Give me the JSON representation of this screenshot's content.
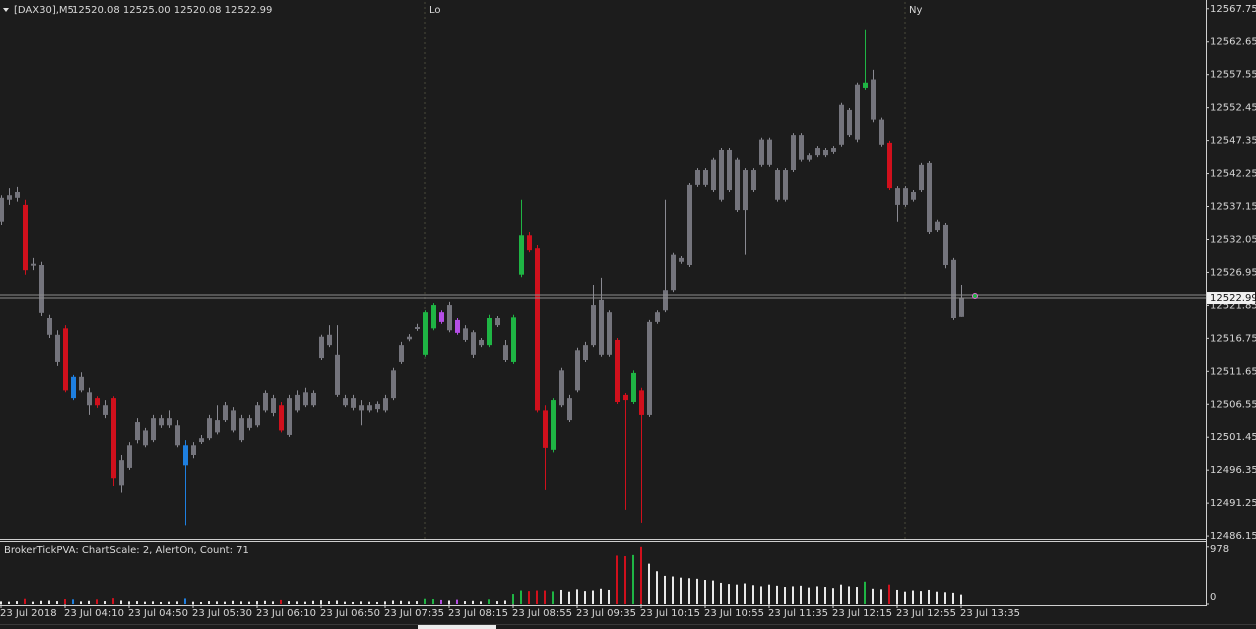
{
  "chart_data": {
    "type": "candlestick",
    "symbol": "[DAX30],M5",
    "info": "12520.08 12525.00 12520.08 12522.99",
    "indicator_label": "BrokerTickPVA:  ChartScale: 2, AlertOn, Count:  71",
    "categories": [
      "23 Jul 2018",
      null,
      null,
      null,
      null,
      null,
      null,
      null,
      "23 Jul 04:10",
      null,
      null,
      null,
      null,
      null,
      null,
      null,
      "23 Jul 04:50",
      null,
      null,
      null,
      null,
      null,
      null,
      null,
      "23 Jul 05:30",
      null,
      null,
      null,
      null,
      null,
      null,
      null,
      "23 Jul 06:10",
      null,
      null,
      null,
      null,
      null,
      null,
      null,
      "23 Jul 06:50",
      null,
      null,
      null,
      null,
      null,
      null,
      null,
      "23 Jul 07:35",
      null,
      null,
      null,
      null,
      null,
      null,
      null,
      "23 Jul 08:15",
      null,
      null,
      null,
      null,
      null,
      null,
      null,
      "23 Jul 08:55",
      null,
      null,
      null,
      null,
      null,
      null,
      null,
      "23 Jul 09:35",
      null,
      null,
      null,
      null,
      null,
      null,
      null,
      "23 Jul 10:15",
      null,
      null,
      null,
      null,
      null,
      null,
      null,
      "23 Jul 10:55",
      null,
      null,
      null,
      null,
      null,
      null,
      null,
      "23 Jul 11:35",
      null,
      null,
      null,
      null,
      null,
      null,
      null,
      "23 Jul 12:15",
      null,
      null,
      null,
      null,
      null,
      null,
      null,
      "23 Jul 12:55",
      null,
      null,
      null,
      null,
      null,
      null,
      null,
      "23 Jul 13:35"
    ],
    "open": [
      12534.8,
      12538.2,
      12538.5,
      12537.4,
      12528.0,
      12528.1,
      12519.9,
      12517.3,
      12518.3,
      12510.8,
      12508.7,
      12508.4,
      12507.5,
      12506.4,
      12507.5,
      12494.0,
      12496.7,
      12501.0,
      12500.2,
      12501.0,
      12503.3,
      12503.3,
      12503.3,
      12500.2,
      12498.7,
      12500.7,
      12501.3,
      12502.2,
      12504.1,
      12505.6,
      12504.4,
      12502.9,
      12503.3,
      12505.6,
      12507.5,
      12506.4,
      12501.8,
      12505.6,
      12506.4,
      12508.3,
      12513.7,
      12515.7,
      12514.2,
      12507.5,
      12507.5,
      12506.4,
      12505.6,
      12505.8,
      12505.6,
      12507.5,
      12513.1,
      12516.6,
      12518.2,
      12514.2,
      12518.3,
      12519.3,
      12518.0,
      12519.6,
      12518.3,
      12517.7,
      12516.5,
      12515.7,
      12519.9,
      12515.7,
      12513.1,
      12526.6,
      12532.7,
      12530.7,
      12505.6,
      12499.5,
      12506.4,
      12504.1,
      12508.7,
      12513.4,
      12515.7,
      12514.2,
      12520.8,
      12516.5,
      12508.0,
      12506.9,
      12508.7,
      12504.9,
      12519.3,
      12521.1,
      12524.2,
      12528.6,
      12528.1,
      12540.5,
      12542.8,
      12539.7,
      12538.2,
      12545.9,
      12544.4,
      12536.6,
      12542.8,
      12543.6,
      12547.5,
      12542.8,
      12538.2,
      12542.8,
      12548.2,
      12544.4,
      12545.1,
      12545.9,
      12545.6,
      12546.7,
      12548.2,
      12547.5,
      12555.5,
      12556.8,
      12550.6,
      12547.0,
      12540.0,
      12537.4,
      12538.2,
      12539.7,
      12543.9,
      12533.5,
      12534.3,
      12528.9,
      12520.08
    ],
    "high": [
      12538.9,
      12540.0,
      12540.2,
      12538.2,
      12529.2,
      12528.6,
      12520.4,
      12518.0,
      12518.8,
      12511.1,
      12511.5,
      12509.1,
      12507.8,
      12507.2,
      12507.8,
      12498.7,
      12500.7,
      12504.4,
      12502.9,
      12504.9,
      12504.9,
      12505.6,
      12504.1,
      12501.0,
      12500.7,
      12501.8,
      12504.9,
      12506.4,
      12506.9,
      12506.1,
      12504.9,
      12504.9,
      12506.9,
      12508.7,
      12508.0,
      12506.9,
      12508.0,
      12508.7,
      12509.1,
      12508.7,
      12517.3,
      12518.8,
      12518.8,
      12508.0,
      12508.0,
      12507.2,
      12506.9,
      12507.0,
      12508.0,
      12512.2,
      12516.2,
      12517.4,
      12519.0,
      12521.1,
      12522.2,
      12521.1,
      12522.4,
      12519.9,
      12518.8,
      12518.0,
      12516.8,
      12520.4,
      12520.2,
      12516.5,
      12520.4,
      12538.2,
      12533.2,
      12531.2,
      12506.4,
      12507.5,
      12512.2,
      12508.0,
      12515.3,
      12516.2,
      12525.0,
      12526.1,
      12521.1,
      12516.8,
      12508.3,
      12511.8,
      12509.1,
      12519.6,
      12521.1,
      12538.2,
      12530.0,
      12529.5,
      12540.8,
      12543.1,
      12543.1,
      12544.7,
      12546.2,
      12546.2,
      12544.7,
      12543.1,
      12543.1,
      12547.8,
      12547.8,
      12543.1,
      12543.1,
      12548.5,
      12548.5,
      12545.4,
      12546.5,
      12546.2,
      12546.5,
      12553.2,
      12552.4,
      12556.3,
      12564.5,
      12558.3,
      12550.9,
      12547.3,
      12540.3,
      12540.3,
      12539.7,
      12543.9,
      12544.2,
      12535.1,
      12534.6,
      12529.2,
      12525.0
    ],
    "low": [
      12534.3,
      12537.4,
      12537.9,
      12526.6,
      12527.3,
      12520.2,
      12516.8,
      12512.5,
      12508.4,
      12507.2,
      12508.4,
      12504.9,
      12506.0,
      12504.4,
      12493.9,
      12492.9,
      12496.4,
      12500.5,
      12499.9,
      12500.7,
      12502.9,
      12502.9,
      12499.9,
      12487.8,
      12498.2,
      12500.4,
      12501.0,
      12501.9,
      12503.8,
      12502.2,
      12500.7,
      12502.5,
      12503.0,
      12505.3,
      12504.7,
      12502.2,
      12501.5,
      12505.3,
      12506.1,
      12506.1,
      12513.4,
      12515.4,
      12507.7,
      12506.1,
      12505.6,
      12503.3,
      12505.3,
      12505.3,
      12505.3,
      12507.2,
      12512.8,
      12516.3,
      12517.9,
      12513.9,
      12518.0,
      12519.0,
      12517.7,
      12517.3,
      12516.2,
      12513.7,
      12515.4,
      12515.4,
      12518.5,
      12513.1,
      12512.8,
      12526.2,
      12530.1,
      12505.3,
      12493.3,
      12499.1,
      12506.1,
      12503.8,
      12508.4,
      12513.1,
      12515.4,
      12513.9,
      12513.9,
      12506.6,
      12490.2,
      12506.6,
      12488.2,
      12504.6,
      12519.0,
      12520.8,
      12523.9,
      12528.3,
      12527.8,
      12540.2,
      12540.2,
      12539.4,
      12537.9,
      12539.4,
      12536.3,
      12529.7,
      12539.4,
      12543.3,
      12543.3,
      12537.9,
      12537.9,
      12542.5,
      12544.1,
      12544.1,
      12544.8,
      12544.8,
      12545.3,
      12546.4,
      12547.9,
      12547.1,
      12555.2,
      12550.2,
      12546.4,
      12539.7,
      12534.8,
      12537.1,
      12537.9,
      12539.4,
      12532.9,
      12533.2,
      12527.6,
      12519.6,
      12520.08
    ],
    "close": [
      12538.5,
      12538.9,
      12539.4,
      12527.3,
      12528.3,
      12520.7,
      12517.3,
      12513.1,
      12508.7,
      12507.5,
      12510.8,
      12506.4,
      12506.4,
      12504.9,
      12495.1,
      12497.9,
      12500.2,
      12503.8,
      12502.5,
      12504.4,
      12504.4,
      12504.4,
      12500.2,
      12497.1,
      12500.2,
      12501.3,
      12504.4,
      12504.1,
      12506.4,
      12502.5,
      12501.0,
      12504.4,
      12506.4,
      12508.3,
      12505.2,
      12502.5,
      12507.5,
      12508.0,
      12508.4,
      12506.4,
      12517.0,
      12517.3,
      12508.0,
      12506.4,
      12506.0,
      12505.6,
      12506.4,
      12506.6,
      12507.5,
      12511.8,
      12515.7,
      12517.0,
      12518.5,
      12520.8,
      12521.9,
      12520.8,
      12521.9,
      12517.6,
      12516.5,
      12514.2,
      12515.7,
      12519.9,
      12518.8,
      12513.4,
      12520.0,
      12532.7,
      12530.4,
      12505.6,
      12499.8,
      12507.2,
      12511.8,
      12507.5,
      12514.9,
      12515.7,
      12521.9,
      12522.7,
      12514.2,
      12506.9,
      12507.2,
      12511.4,
      12504.9,
      12519.3,
      12520.8,
      12524.2,
      12529.7,
      12529.2,
      12540.5,
      12542.8,
      12540.5,
      12544.4,
      12545.9,
      12539.7,
      12536.6,
      12542.8,
      12539.7,
      12547.5,
      12543.6,
      12538.2,
      12542.8,
      12548.2,
      12544.4,
      12545.1,
      12546.2,
      12545.1,
      12546.2,
      12552.9,
      12552.1,
      12556.0,
      12556.3,
      12550.6,
      12546.7,
      12540.0,
      12537.4,
      12540.0,
      12539.4,
      12543.6,
      12533.2,
      12534.8,
      12528.1,
      12519.9,
      12522.99
    ],
    "colors": [
      "#74747c",
      "#74747c",
      "#74747c",
      "#d0101c",
      "#74747c",
      "#74747c",
      "#74747c",
      "#74747c",
      "#d0101c",
      "#1e7fe0",
      "#74747c",
      "#74747c",
      "#d0101c",
      "#74747c",
      "#d0101c",
      "#74747c",
      "#74747c",
      "#74747c",
      "#74747c",
      "#74747c",
      "#74747c",
      "#74747c",
      "#74747c",
      "#1e7fe0",
      "#74747c",
      "#74747c",
      "#74747c",
      "#74747c",
      "#74747c",
      "#74747c",
      "#74747c",
      "#74747c",
      "#74747c",
      "#74747c",
      "#74747c",
      "#d0101c",
      "#74747c",
      "#74747c",
      "#74747c",
      "#74747c",
      "#74747c",
      "#74747c",
      "#74747c",
      "#74747c",
      "#74747c",
      "#74747c",
      "#74747c",
      "#74747c",
      "#74747c",
      "#74747c",
      "#74747c",
      "#74747c",
      "#74747c",
      "#1fb544",
      "#1fb544",
      "#b54ee6",
      "#74747c",
      "#b54ee6",
      "#74747c",
      "#74747c",
      "#74747c",
      "#1fb544",
      "#74747c",
      "#74747c",
      "#1fb544",
      "#1fb544",
      "#d0101c",
      "#d0101c",
      "#d0101c",
      "#1fb544",
      "#74747c",
      "#74747c",
      "#74747c",
      "#74747c",
      "#74747c",
      "#74747c",
      "#74747c",
      "#d0101c",
      "#d0101c",
      "#1fb544",
      "#d0101c",
      "#74747c",
      "#74747c",
      "#74747c",
      "#74747c",
      "#74747c",
      "#74747c",
      "#74747c",
      "#74747c",
      "#74747c",
      "#74747c",
      "#74747c",
      "#74747c",
      "#74747c",
      "#74747c",
      "#74747c",
      "#74747c",
      "#74747c",
      "#74747c",
      "#74747c",
      "#74747c",
      "#74747c",
      "#74747c",
      "#74747c",
      "#74747c",
      "#74747c",
      "#74747c",
      "#74747c",
      "#1fb544",
      "#74747c",
      "#74747c",
      "#d0101c",
      "#74747c",
      "#74747c",
      "#74747c",
      "#74747c",
      "#74747c",
      "#74747c",
      "#74747c",
      "#74747c",
      "#74747c"
    ],
    "neutral_color": "#74747c",
    "volume_neutral_color": "#e8e8e8",
    "ylim": [
      12485.7,
      12568.8
    ],
    "yticks": [
      {
        "value": 12567.75,
        "label": "12567.75"
      },
      {
        "value": 12562.65,
        "label": "12562.65"
      },
      {
        "value": 12557.55,
        "label": "12557.55"
      },
      {
        "value": 12552.45,
        "label": "12552.45"
      },
      {
        "value": 12547.35,
        "label": "12547.35"
      },
      {
        "value": 12542.25,
        "label": "12542.25"
      },
      {
        "value": 12537.15,
        "label": "12537.15"
      },
      {
        "value": 12532.05,
        "label": "12532.05"
      },
      {
        "value": 12526.95,
        "label": "12526.95"
      },
      {
        "value": 12521.85,
        "label": "12521.85"
      },
      {
        "value": 12516.75,
        "label": "12516.75"
      },
      {
        "value": 12511.65,
        "label": "12511.65"
      },
      {
        "value": 12506.55,
        "label": "12506.55"
      },
      {
        "value": 12501.45,
        "label": "12501.45"
      },
      {
        "value": 12496.35,
        "label": "12496.35"
      },
      {
        "value": 12491.25,
        "label": "12491.25"
      },
      {
        "value": 12486.15,
        "label": "12486.15"
      }
    ],
    "current_price": 12522.99,
    "sessions": [
      {
        "label": "Lo",
        "index": 53
      },
      {
        "label": "Ny",
        "index": 113
      }
    ],
    "volume": [
      45,
      40,
      50,
      90,
      40,
      55,
      60,
      50,
      85,
      80,
      45,
      55,
      80,
      50,
      100,
      60,
      45,
      50,
      40,
      45,
      35,
      40,
      45,
      95,
      40,
      35,
      50,
      45,
      40,
      55,
      45,
      40,
      50,
      55,
      45,
      70,
      50,
      45,
      40,
      55,
      65,
      50,
      60,
      40,
      35,
      45,
      40,
      35,
      45,
      60,
      55,
      45,
      50,
      90,
      85,
      70,
      60,
      75,
      50,
      55,
      45,
      80,
      50,
      60,
      170,
      230,
      220,
      230,
      230,
      215,
      240,
      210,
      250,
      220,
      230,
      260,
      240,
      830,
      820,
      840,
      978,
      690,
      560,
      480,
      470,
      450,
      440,
      430,
      410,
      400,
      360,
      340,
      330,
      350,
      320,
      300,
      330,
      310,
      290,
      300,
      310,
      280,
      300,
      290,
      270,
      330,
      300,
      290,
      380,
      260,
      250,
      330,
      240,
      210,
      230,
      220,
      240,
      210,
      200,
      190,
      160
    ],
    "vylim": [
      0,
      1060
    ],
    "vyticks": [
      978,
      0
    ]
  }
}
